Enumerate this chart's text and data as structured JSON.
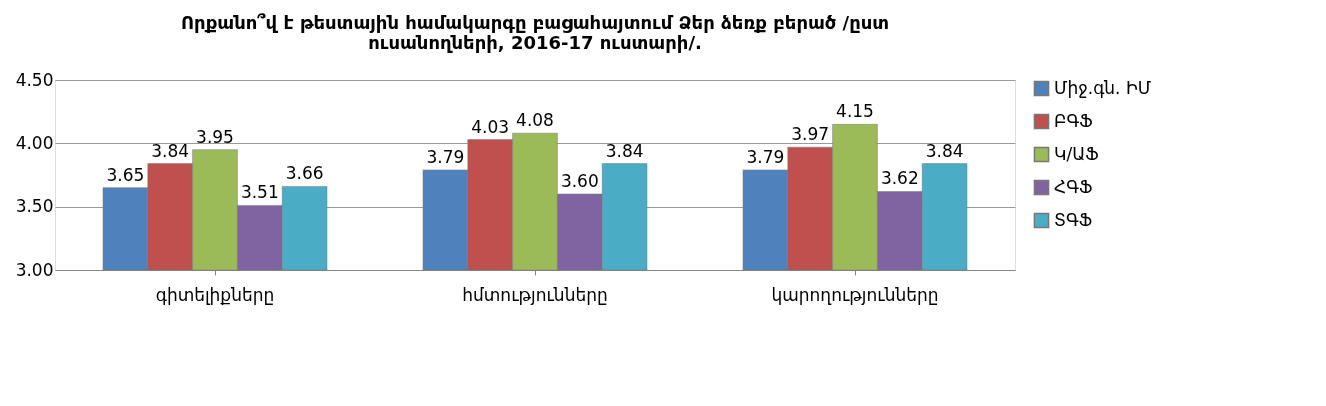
{
  "chart_data": {
    "type": "bar",
    "title": "Որքանո՞վ է թեստային համակարգը բացահայտում Ձեր ձեռք բերած /ըստ ուսանողների, 2016-17 ուստարի/.",
    "categories": [
      "գիտելիքները",
      "հմտությունները",
      "կարողությունները"
    ],
    "series": [
      {
        "name": "Միջ.գն. ԻՄ",
        "color": "#4f81bd",
        "values": [
          3.65,
          3.79,
          3.79
        ],
        "value_labels": [
          "3.65",
          "3.79",
          "3.79"
        ]
      },
      {
        "name": "ԲԳՖ",
        "color": "#c0504d",
        "values": [
          3.84,
          4.03,
          3.97
        ],
        "value_labels": [
          "3.84",
          "4.03",
          "3.97"
        ]
      },
      {
        "name": "Կ/ԱՖ",
        "color": "#9bbb59",
        "values": [
          3.95,
          4.08,
          4.15
        ],
        "value_labels": [
          "3.95",
          "4.08",
          "4.15"
        ]
      },
      {
        "name": "ՀԳՖ",
        "color": "#8064a2",
        "values": [
          3.51,
          3.6,
          3.62
        ],
        "value_labels": [
          "3.51",
          "3.60",
          "3.62"
        ]
      },
      {
        "name": "ՏԳՖ",
        "color": "#4bacc6",
        "values": [
          3.66,
          3.84,
          3.84
        ],
        "value_labels": [
          "3.66",
          "3.84",
          "3.84"
        ]
      }
    ],
    "ylim": [
      3.0,
      4.5
    ],
    "yticks": [
      {
        "value": 3.0,
        "label": "3.00"
      },
      {
        "value": 3.5,
        "label": "3.50"
      },
      {
        "value": 4.0,
        "label": "4.00"
      },
      {
        "value": 4.5,
        "label": "4.50"
      }
    ],
    "grid": "y",
    "legend": "right"
  }
}
